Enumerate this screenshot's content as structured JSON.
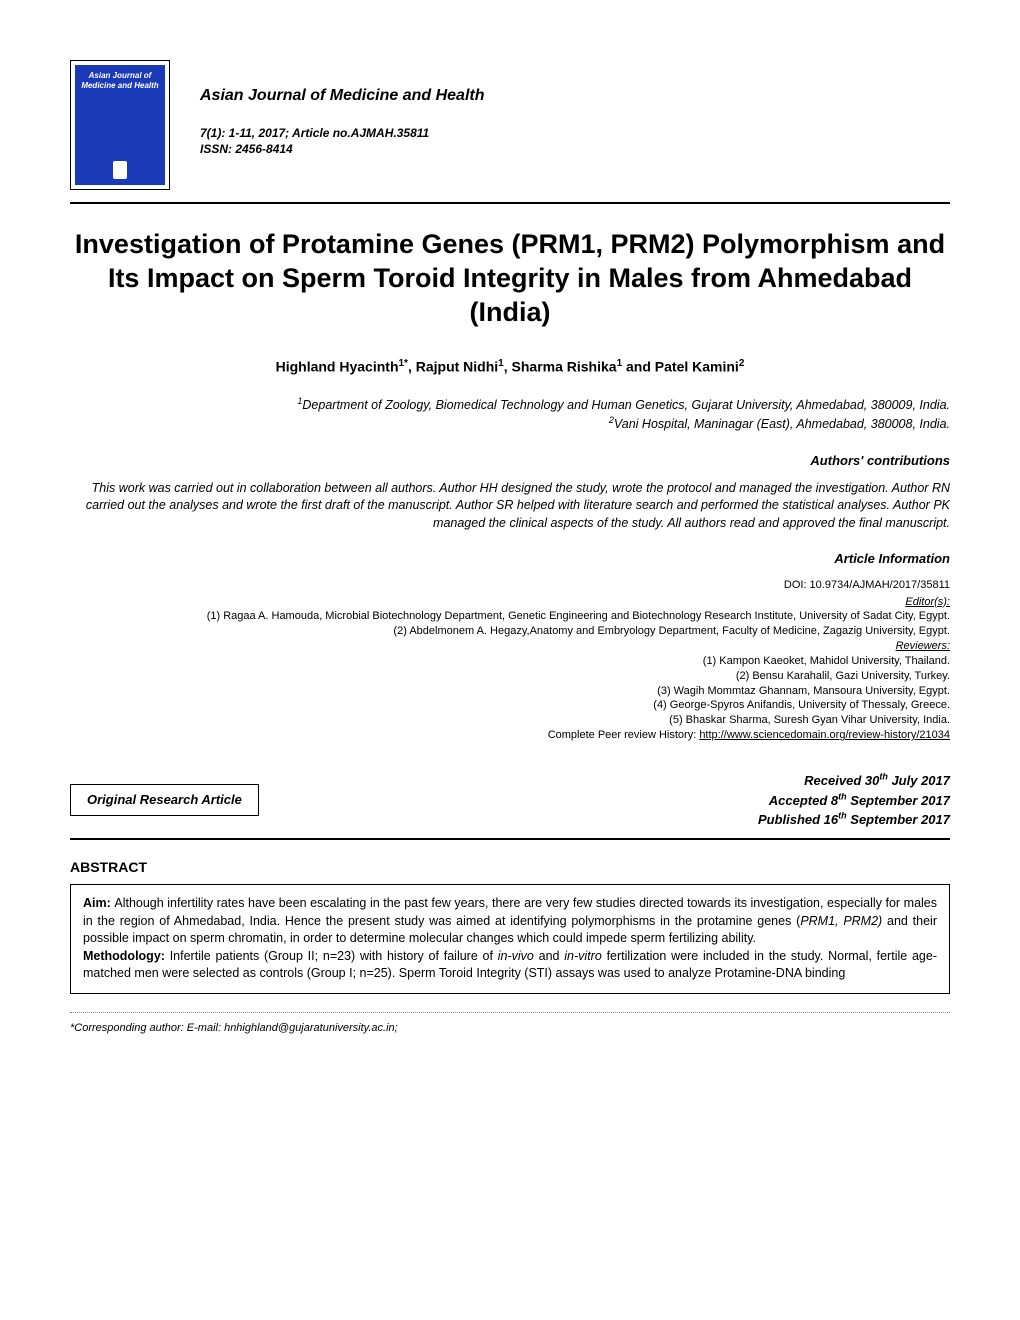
{
  "journal": {
    "cover_title": "Asian Journal of Medicine and Health",
    "name": "Asian Journal of Medicine and Health",
    "volume_line": "7(1): 1-11, 2017; Article no.AJMAH.35811",
    "issn_line": "ISSN: 2456-8414"
  },
  "article": {
    "title": "Investigation of Protamine Genes (PRM1, PRM2) Polymorphism and Its Impact on Sperm Toroid Integrity in Males from Ahmedabad (India)",
    "type": "Original Research Article"
  },
  "authors_html": "Highland Hyacinth<sup>1*</sup>, Rajput Nidhi<sup>1</sup>, Sharma Rishika<sup>1</sup> and Patel Kamini<sup>2</sup>",
  "affiliations": {
    "a1": "Department of Zoology, Biomedical Technology and Human Genetics, Gujarat University, Ahmedabad, 380009, India.",
    "a2": "Vani Hospital, Maninagar (East), Ahmedabad, 380008, India."
  },
  "contributions": {
    "label": "Authors' contributions",
    "text": "This work was carried out in collaboration between all authors. Author HH designed the study, wrote the protocol and managed the investigation. Author RN carried out the analyses and wrote the first draft of the manuscript. Author SR helped with literature search and performed the statistical analyses. Author PK managed the clinical aspects of the study. All authors read and approved the final manuscript."
  },
  "article_info": {
    "label": "Article Information",
    "doi": "DOI: 10.9734/AJMAH/2017/35811",
    "editors_label": "Editor(s):",
    "editors": [
      "(1) Ragaa A. Hamouda, Microbial Biotechnology Department, Genetic Engineering and Biotechnology Research Institute, University of Sadat City, Egypt.",
      "(2) Abdelmonem A. Hegazy,Anatomy and Embryology Department, Faculty of Medicine, Zagazig University, Egypt."
    ],
    "reviewers_label": "Reviewers:",
    "reviewers": [
      "(1) Kampon Kaeoket, Mahidol University, Thailand.",
      "(2) Bensu Karahalil, Gazi University, Turkey.",
      "(3) Wagih Mommtaz Ghannam, Mansoura University, Egypt.",
      "(4) George-Spyros Anifandis, University of Thessaly, Greece.",
      "(5) Bhaskar Sharma, Suresh Gyan Vihar University, India."
    ],
    "peer_prefix": "Complete Peer review History: ",
    "peer_url": "http://www.sciencedomain.org/review-history/21034"
  },
  "dates": {
    "received": "Received 30",
    "received_sup": "th",
    "received_tail": " July 2017",
    "accepted": "Accepted 8",
    "accepted_sup": "th",
    "accepted_tail": " September 2017",
    "published": "Published 16",
    "published_sup": "th",
    "published_tail": " September 2017"
  },
  "abstract": {
    "heading": "ABSTRACT",
    "aim_label": "Aim: ",
    "aim_text": "Although infertility rates have been escalating in the past few years, there are very few studies directed towards its investigation, especially for males in the region of Ahmedabad, India. Hence the present study was aimed at identifying polymorphisms in the protamine genes (",
    "aim_ital": "PRM1, PRM2)",
    "aim_tail": " and their possible impact on sperm chromatin, in order to determine molecular changes which could impede sperm fertilizing ability.",
    "meth_label": "Methodology: ",
    "meth_text1": "Infertile patients (Group II; n=23) with history of failure of ",
    "meth_ital1": "in-vivo",
    "meth_text2": " and ",
    "meth_ital2": "in-vitro",
    "meth_text3": " fertilization were included in the study. Normal, fertile age-matched men were selected as controls (Group I; n=25). Sperm Toroid Integrity (STI) assays was used to analyze Protamine-DNA binding"
  },
  "corresponding": "*Corresponding author: E-mail: hnhighland@gujaratuniversity.ac.in;"
}
